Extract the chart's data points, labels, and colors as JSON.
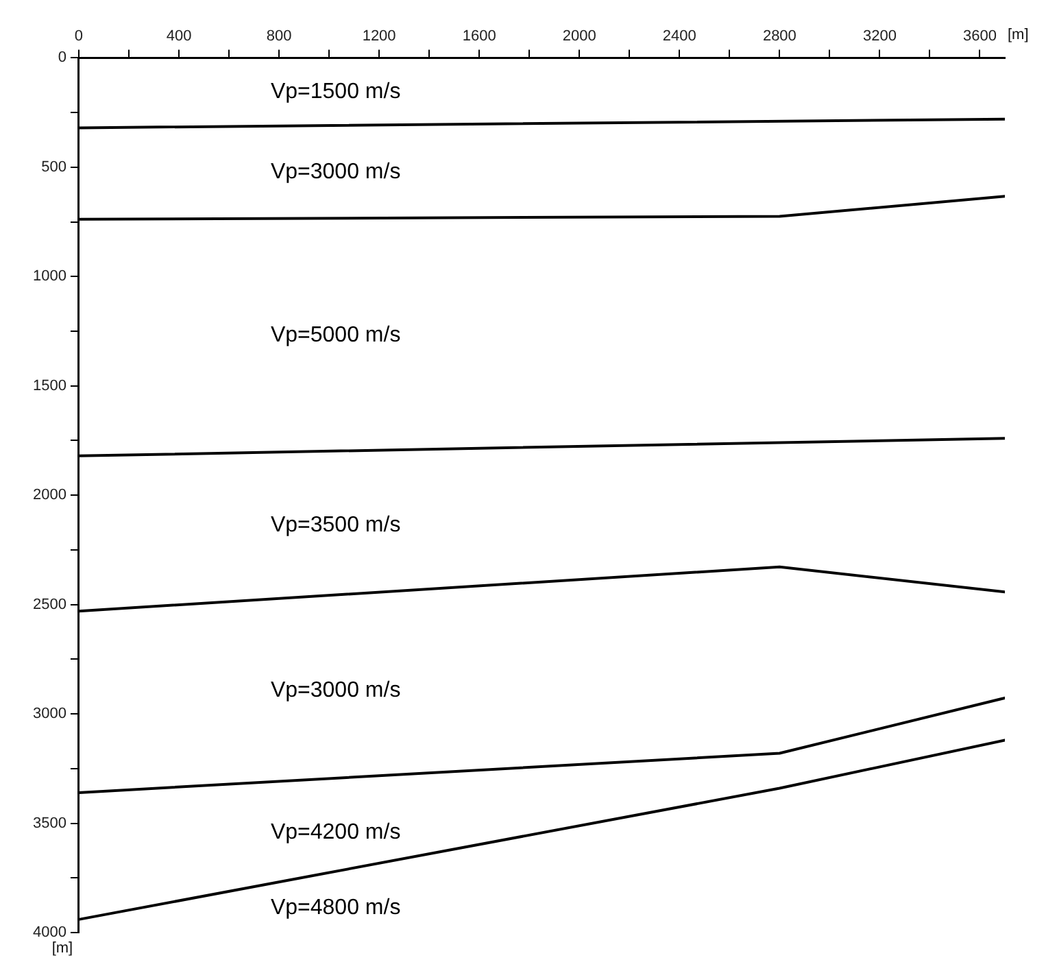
{
  "chart_data": {
    "type": "line",
    "xlabel": "[m]",
    "ylabel": "[m]",
    "xlim": [
      0,
      3700
    ],
    "ylim": [
      4000,
      0
    ],
    "xticks": [
      0,
      {
        "value": 200,
        "label": null
      },
      400,
      {
        "value": 600,
        "label": null
      },
      800,
      {
        "value": 1000,
        "label": null
      },
      1200,
      {
        "value": 1400,
        "label": null
      },
      1600,
      {
        "value": 1800,
        "label": null
      },
      2000,
      {
        "value": 2200,
        "label": null
      },
      2400,
      {
        "value": 2600,
        "label": null
      },
      2800,
      {
        "value": 3000,
        "label": null
      },
      3200,
      {
        "value": 3400,
        "label": null
      },
      3600
    ],
    "yticks": [
      0,
      {
        "value": 250,
        "label": null
      },
      500,
      {
        "value": 750,
        "label": null
      },
      1000,
      {
        "value": 1250,
        "label": null
      },
      1500,
      {
        "value": 1750,
        "label": null
      },
      2000,
      {
        "value": 2250,
        "label": null
      },
      2500,
      {
        "value": 2750,
        "label": null
      },
      3000,
      {
        "value": 3250,
        "label": null
      },
      3500,
      {
        "value": 3750,
        "label": null
      },
      4000
    ],
    "grid": false,
    "legend": false,
    "marker": "none",
    "line_style": "solid",
    "series": [
      {
        "color": "#000000",
        "x": [
          0,
          3700
        ],
        "values": [
          320,
          280
        ]
      },
      {
        "color": "#000000",
        "x": [
          0,
          2800,
          3700
        ],
        "values": [
          738,
          725,
          633
        ]
      },
      {
        "color": "#000000",
        "x": [
          0,
          3700
        ],
        "values": [
          1820,
          1740
        ]
      },
      {
        "color": "#000000",
        "x": [
          0,
          2800,
          3700
        ],
        "values": [
          2530,
          2328,
          2442
        ]
      },
      {
        "color": "#000000",
        "x": [
          0,
          2800,
          3700
        ],
        "values": [
          3360,
          3180,
          2927
        ]
      },
      {
        "color": "#000000",
        "x": [
          0,
          2800,
          3700
        ],
        "values": [
          3940,
          3340,
          3120
        ]
      }
    ],
    "annotations": [
      "Vp=1500 m/s",
      "Vp=3000 m/s",
      "Vp=5000 m/s",
      "Vp=3500 m/s",
      "Vp=3000 m/s",
      "Vp=4200 m/s",
      "Vp=4800 m/s"
    ]
  }
}
